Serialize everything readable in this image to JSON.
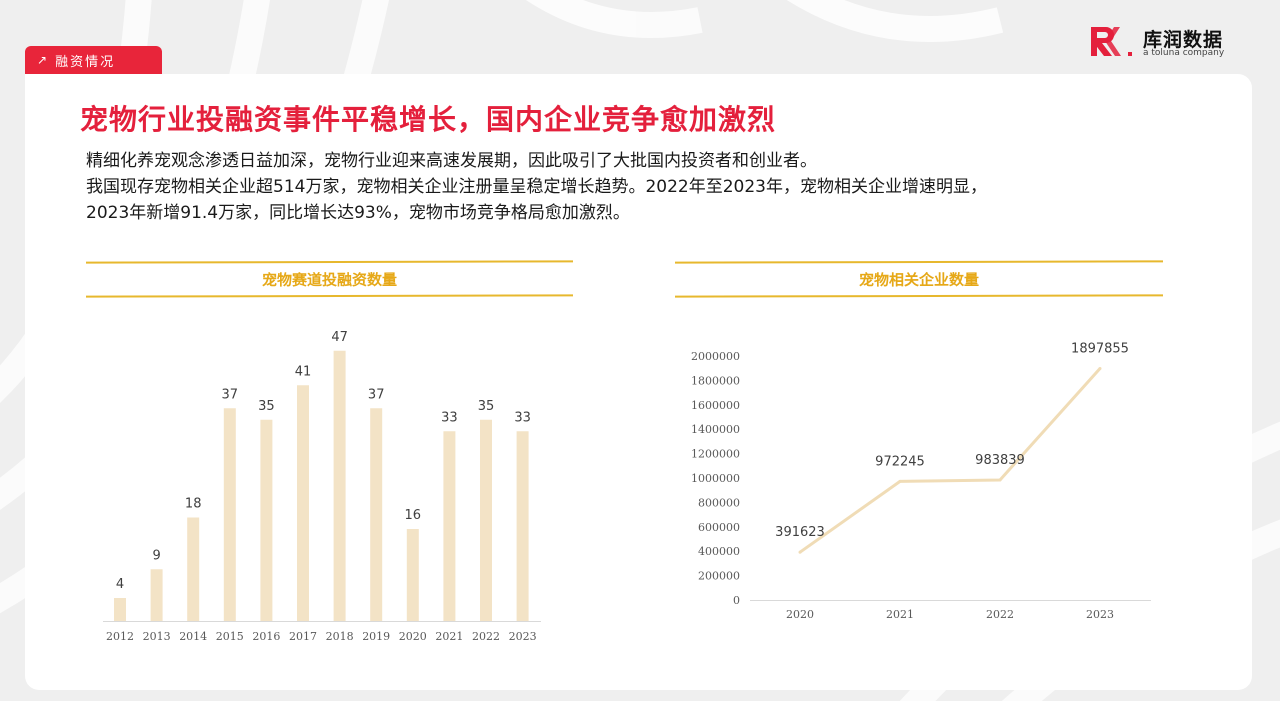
{
  "section_tag": {
    "label": "融资情况",
    "arrow": "↗"
  },
  "logo": {
    "name": "库润数据",
    "sub": "a toluna company"
  },
  "headline": "宠物行业投融资事件平稳增长，国内企业竞争愈加激烈",
  "body": {
    "line1": "精细化养宠观念渗透日益加深，宠物行业迎来高速发展期，因此吸引了大批国内投资者和创业者。",
    "line2": "我国现存宠物相关企业超514万家，宠物相关企业注册量呈稳定增长趋势。2022年至2023年，宠物相关企业增速明显，",
    "line3": "2023年新增91.4万家，同比增长达93%，宠物市场竞争格局愈加激烈。"
  },
  "colors": {
    "accent": "#e4203c",
    "gold": "#e7b82d",
    "bar": "#f3e3c6",
    "line": "#f0dcb6"
  },
  "chart_data": [
    {
      "type": "bar",
      "title": "宠物赛道投融资数量",
      "categories": [
        "2012",
        "2013",
        "2014",
        "2015",
        "2016",
        "2017",
        "2018",
        "2019",
        "2020",
        "2021",
        "2022",
        "2023"
      ],
      "values": [
        4,
        9,
        18,
        37,
        35,
        41,
        47,
        37,
        16,
        33,
        35,
        33
      ],
      "grid": false
    },
    {
      "type": "line",
      "title": "宠物相关企业数量",
      "categories": [
        "2020",
        "2021",
        "2022",
        "2023"
      ],
      "values": [
        391623,
        972245,
        983839,
        1897855
      ],
      "yticks": [
        "0",
        "200000",
        "400000",
        "600000",
        "800000",
        "1000000",
        "1200000",
        "1400000",
        "1600000",
        "1800000",
        "2000000"
      ],
      "ylim": [
        0,
        2000000
      ],
      "grid": false
    }
  ]
}
